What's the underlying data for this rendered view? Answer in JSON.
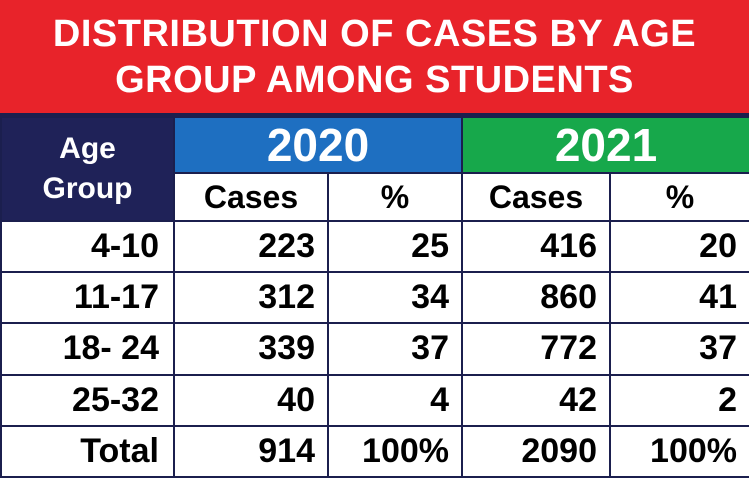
{
  "chart_data": {
    "type": "table",
    "title_line1": "DISTRIBUTION OF CASES BY AGE",
    "title_line2": "GROUP AMONG STUDENTS",
    "age_header_line1": "Age",
    "age_header_line2": "Group",
    "years": [
      "2020",
      "2021"
    ],
    "subheaders": [
      "Cases",
      "%",
      "Cases",
      "%"
    ],
    "rows": [
      {
        "group": "4-10",
        "c2020": "223",
        "p2020": "25",
        "c2021": "416",
        "p2021": "20"
      },
      {
        "group": "11-17",
        "c2020": "312",
        "p2020": "34",
        "c2021": "860",
        "p2021": "41"
      },
      {
        "group": "18- 24",
        "c2020": "339",
        "p2020": "37",
        "c2021": "772",
        "p2021": "37"
      },
      {
        "group": "25-32",
        "c2020": "40",
        "p2020": "4",
        "c2021": "42",
        "p2021": "2"
      },
      {
        "group": "Total",
        "c2020": "914",
        "p2020": "100%",
        "c2021": "2090",
        "p2021": "100%"
      }
    ],
    "colors": {
      "title_bg": "#e8232a",
      "age_header_bg": "#1f2258",
      "year_2020_bg": "#1e6fc1",
      "year_2021_bg": "#17a84b"
    }
  }
}
